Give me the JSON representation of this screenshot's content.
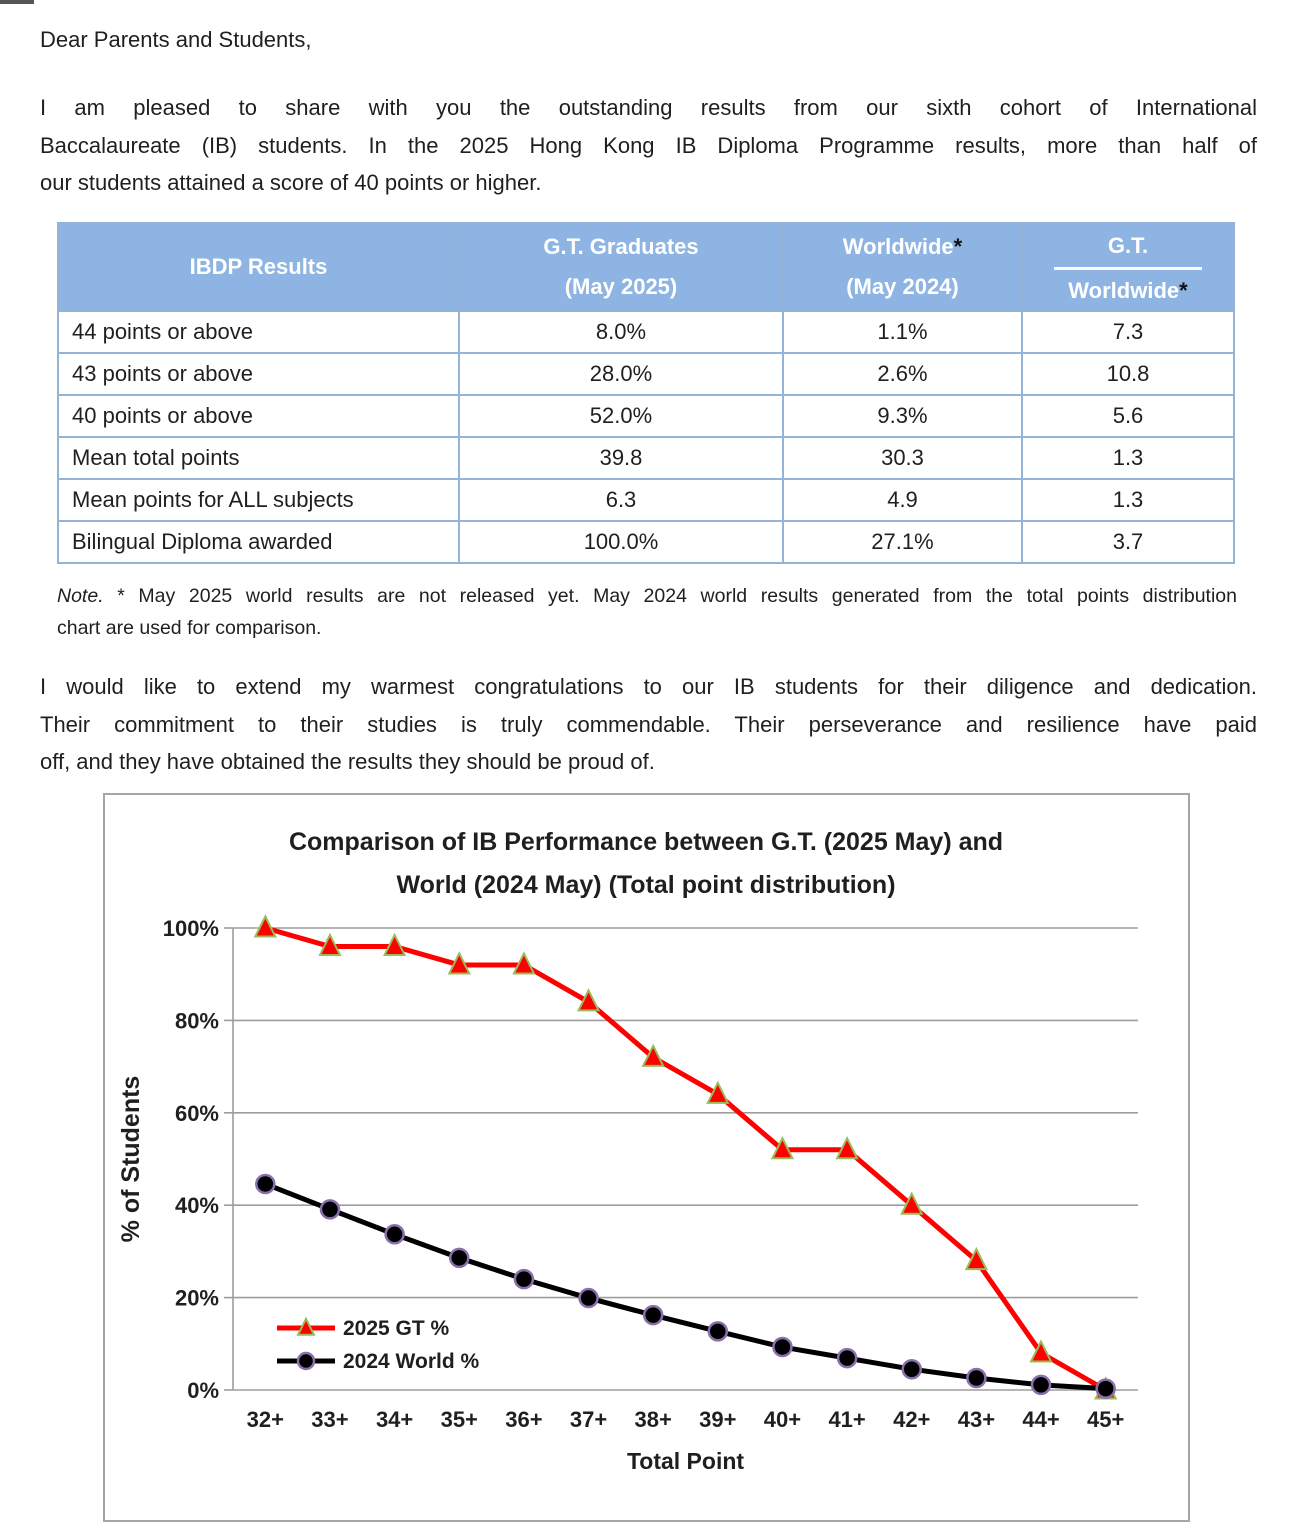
{
  "page": {
    "salutation": "Dear Parents and Students,",
    "para1": [
      "I am pleased to share with you the outstanding results from our sixth cohort of International",
      "Baccalaureate (IB) students. In the 2025 Hong Kong IB Diploma Programme results, more than half of",
      "our students attained a score of 40 points or higher."
    ],
    "note_label": "Note.",
    "note_line1": " * May 2025 world results are not released yet. May 2024 world results generated from the total points distribution",
    "note_line2": "chart are used for comparison.",
    "para2": [
      "I would like to extend my warmest congratulations to our IB students for their diligence and dedication.",
      "Their commitment to their studies is truly commendable. Their perseverance and resilience have paid",
      "off, and they have obtained the results they should be proud of."
    ]
  },
  "table": {
    "header": {
      "col1": "IBDP Results",
      "col2_line1": "G.T. Graduates",
      "col2_line2": "(May 2025)",
      "col3_line1": "Worldwide",
      "col3_star": "*",
      "col3_line2": "(May 2024)",
      "col4_top": "G.T.",
      "col4_bottom": "Worldwide",
      "col4_star": "*"
    },
    "rows": [
      {
        "label": "44 points or above",
        "gt": "8.0%",
        "world": "1.1%",
        "ratio": "7.3"
      },
      {
        "label": "43 points or above",
        "gt": "28.0%",
        "world": "2.6%",
        "ratio": "10.8"
      },
      {
        "label": "40 points or above",
        "gt": "52.0%",
        "world": "9.3%",
        "ratio": "5.6"
      },
      {
        "label": "Mean total points",
        "gt": "39.8",
        "world": "30.3",
        "ratio": "1.3"
      },
      {
        "label": "Mean points for ALL subjects",
        "gt": "6.3",
        "world": "4.9",
        "ratio": "1.3"
      },
      {
        "label": "Bilingual Diploma awarded",
        "gt": "100.0%",
        "world": "27.1%",
        "ratio": "3.7"
      }
    ]
  },
  "chart_data": {
    "type": "line",
    "title_lines": [
      "Comparison of IB Performance between G.T. (2025 May) and",
      "World (2024 May) (Total point distribution)"
    ],
    "categories": [
      "32+",
      "33+",
      "34+",
      "35+",
      "36+",
      "37+",
      "38+",
      "39+",
      "40+",
      "41+",
      "42+",
      "43+",
      "44+",
      "45+"
    ],
    "series": [
      {
        "name": "2025 GT %",
        "values": [
          100,
          96,
          96,
          92,
          92,
          84,
          72,
          64,
          52,
          52,
          40,
          28,
          8,
          0
        ],
        "color": "#FF0000",
        "marker": "triangle",
        "marker_border": "#9BBB59"
      },
      {
        "name": "2024 World %",
        "values": [
          44.6,
          39.1,
          33.7,
          28.6,
          24.0,
          19.9,
          16.2,
          12.7,
          9.3,
          6.9,
          4.5,
          2.6,
          1.1,
          0.3
        ],
        "color": "#000000",
        "marker": "circle",
        "marker_border": "#8A6FAE"
      }
    ],
    "xlabel": "Total Point",
    "ylabel": "% of Students",
    "ylim": [
      0,
      100
    ],
    "ytick_step": 20,
    "ytick_suffix": "%",
    "grid": true,
    "legend_position": "inside-bottom-left"
  },
  "colors": {
    "table_header_bg": "#8DB4E2",
    "table_border": "#95B3D7",
    "gridline": "#9D9D9D",
    "chart_border": "#A6A6A6",
    "gt_line": "#FF0000",
    "world_line": "#000000"
  }
}
